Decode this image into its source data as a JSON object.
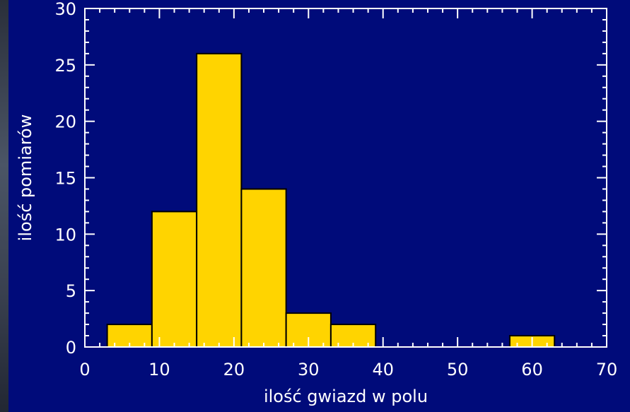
{
  "colors": {
    "background": "#000b7a",
    "bar_fill": "#ffd400",
    "bar_stroke": "#000000",
    "axes": "#ffffff",
    "text": "#ffffff"
  },
  "chart_data": {
    "type": "bar",
    "title": "",
    "xlabel": "ilość gwiazd w polu",
    "ylabel": "ilość pomiarów",
    "xlim": [
      0,
      70
    ],
    "ylim": [
      0,
      30
    ],
    "x_ticks": [
      "0",
      "10",
      "20",
      "30",
      "40",
      "50",
      "60",
      "70"
    ],
    "y_ticks": [
      "0",
      "5",
      "10",
      "15",
      "20",
      "25",
      "30"
    ],
    "grid": false,
    "bin_width": 6,
    "bin_starts": [
      3,
      9,
      15,
      21,
      27,
      33,
      57
    ],
    "values": [
      2,
      12,
      26,
      14,
      3,
      2,
      1
    ]
  }
}
